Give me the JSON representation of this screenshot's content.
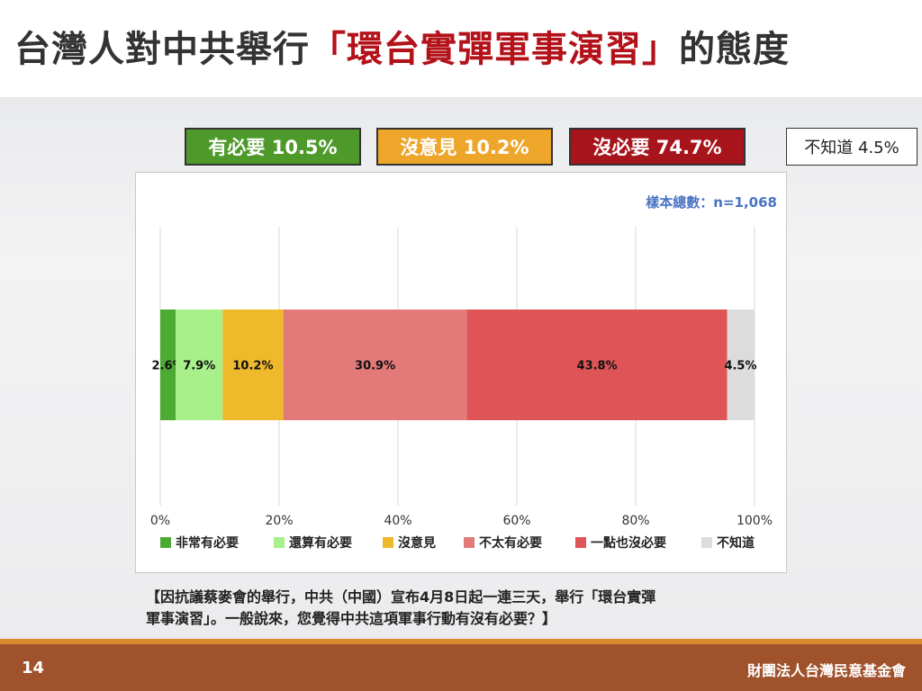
{
  "header": {
    "title_prefix": "台灣人對中共舉行",
    "title_highlight": "「環台實彈軍事演習」",
    "title_suffix": "的態度"
  },
  "summary": {
    "necessary": "有必要 10.5%",
    "no_opinion": "沒意見 10.2%",
    "unnecessary": "沒必要 74.7%",
    "unknown": "不知道 4.5%"
  },
  "sample_note": "樣本總數：n=1,068",
  "chart_data": {
    "type": "bar",
    "orientation": "horizontal",
    "stacked": true,
    "xlim": [
      0,
      100
    ],
    "x_ticks": [
      "0%",
      "20%",
      "40%",
      "60%",
      "80%",
      "100%"
    ],
    "grid": true,
    "legend_position": "bottom",
    "series": [
      {
        "name": "非常有必要",
        "value": 2.6,
        "label": "2.6%",
        "color": "#4daa32"
      },
      {
        "name": "還算有必要",
        "value": 7.9,
        "label": "7.9%",
        "color": "#a8f08a"
      },
      {
        "name": "沒意見",
        "value": 10.2,
        "label": "10.2%",
        "color": "#efb92c"
      },
      {
        "name": "不太有必要",
        "value": 30.9,
        "label": "30.9%",
        "color": "#e27a7a"
      },
      {
        "name": "一點也沒必要",
        "value": 43.8,
        "label": "43.8%",
        "color": "#df5557"
      },
      {
        "name": "不知道",
        "value": 4.5,
        "label": "4.5%",
        "color": "#dcdcdc"
      }
    ]
  },
  "question": {
    "line1": "【因抗議蔡麥會的舉行，中共（中國）宣布4月8日起一連三天，舉行「環台實彈",
    "line2": "軍事演習」。一般說來，您覺得中共這項軍事行動有沒有必要？】"
  },
  "footer": {
    "page_number": "14",
    "organization": "財團法人台灣民意基金會"
  }
}
